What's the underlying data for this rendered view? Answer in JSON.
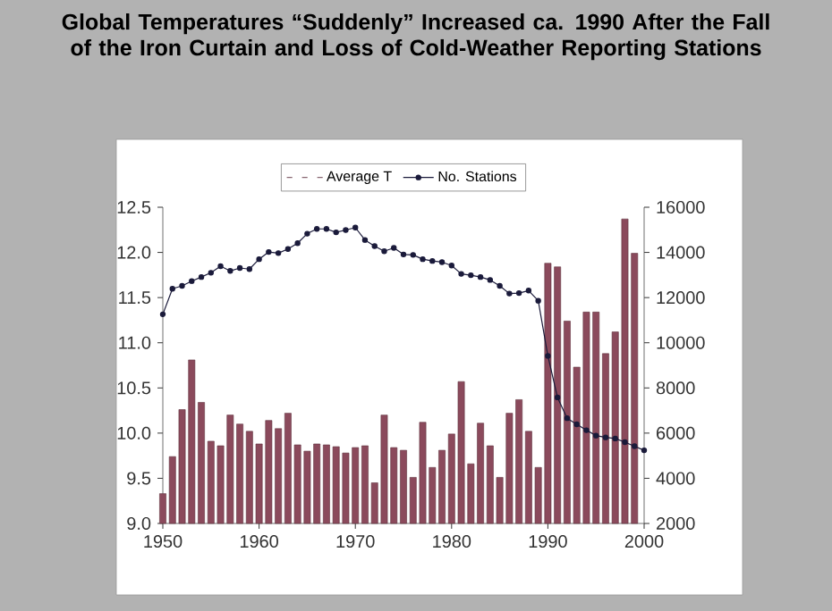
{
  "chart_data": {
    "type": "bar",
    "title": "Global Temperatures “Suddenly” Increased ca. 1990 After the Fall of the Iron Curtain and Loss of Cold-Weather Reporting Stations",
    "xlim": [
      1950,
      2000
    ],
    "xticks": [
      1950,
      1960,
      1970,
      1980,
      1990,
      2000
    ],
    "ylim": [
      9,
      12.5
    ],
    "yticks": [
      {
        "value": 9,
        "label": "9.0"
      },
      {
        "value": 9.5,
        "label": "9.5"
      },
      {
        "value": 10,
        "label": "10.0"
      },
      {
        "value": 10.5,
        "label": "10.5"
      },
      {
        "value": 11,
        "label": "11.0"
      },
      {
        "value": 11.5,
        "label": "11.5"
      },
      {
        "value": 12,
        "label": "12.0"
      },
      {
        "value": 12.5,
        "label": "12.5"
      }
    ],
    "y2lim": [
      2000,
      16000
    ],
    "y2ticks": [
      2000,
      4000,
      6000,
      8000,
      10000,
      12000,
      14000,
      16000
    ],
    "legend": "top",
    "grid": false,
    "series": [
      {
        "name": "Average T",
        "color": "#8b4a5c",
        "x": [
          1950,
          1951,
          1952,
          1953,
          1954,
          1955,
          1956,
          1957,
          1958,
          1959,
          1960,
          1961,
          1962,
          1963,
          1964,
          1965,
          1966,
          1967,
          1968,
          1969,
          1970,
          1971,
          1972,
          1973,
          1974,
          1975,
          1976,
          1977,
          1978,
          1979,
          1980,
          1981,
          1982,
          1983,
          1984,
          1985,
          1986,
          1987,
          1988,
          1989,
          1990,
          1991,
          1992,
          1993,
          1994,
          1995,
          1996,
          1997,
          1998,
          1999
        ],
        "values": [
          9.33,
          9.74,
          10.26,
          10.81,
          10.34,
          9.91,
          9.86,
          10.2,
          10.1,
          10.02,
          9.88,
          10.14,
          10.05,
          10.22,
          9.87,
          9.8,
          9.88,
          9.87,
          9.85,
          9.78,
          9.84,
          9.86,
          9.45,
          10.2,
          9.84,
          9.81,
          9.51,
          10.12,
          9.62,
          9.81,
          9.99,
          10.57,
          9.66,
          10.11,
          9.86,
          9.51,
          10.22,
          10.37,
          10.02,
          9.62,
          11.88,
          11.84,
          11.24,
          10.73,
          11.34,
          11.34,
          10.88,
          11.12,
          12.37,
          11.99
        ]
      },
      {
        "name": "No. Stations",
        "type": "line",
        "axis": "y2",
        "color": "#1a1a3a",
        "marker": "circle",
        "x": [
          1950,
          1951,
          1952,
          1953,
          1954,
          1955,
          1956,
          1957,
          1958,
          1959,
          1960,
          1961,
          1962,
          1963,
          1964,
          1965,
          1966,
          1967,
          1968,
          1969,
          1970,
          1971,
          1972,
          1973,
          1974,
          1975,
          1976,
          1977,
          1978,
          1979,
          1980,
          1981,
          1982,
          1983,
          1984,
          1985,
          1986,
          1987,
          1988,
          1989,
          1990,
          1991,
          1992,
          1993,
          1994,
          1995,
          1996,
          1997,
          1998,
          1999,
          2000
        ],
        "values": [
          11260,
          12390,
          12520,
          12730,
          12910,
          13100,
          13390,
          13180,
          13310,
          13260,
          13700,
          14020,
          13970,
          14150,
          14410,
          14830,
          15040,
          15040,
          14890,
          14990,
          15100,
          14550,
          14280,
          14050,
          14200,
          13910,
          13890,
          13700,
          13620,
          13570,
          13420,
          13050,
          12990,
          12910,
          12780,
          12520,
          12180,
          12200,
          12310,
          11860,
          9420,
          7580,
          6660,
          6390,
          6130,
          5890,
          5810,
          5760,
          5600,
          5420,
          5240
        ]
      }
    ]
  }
}
